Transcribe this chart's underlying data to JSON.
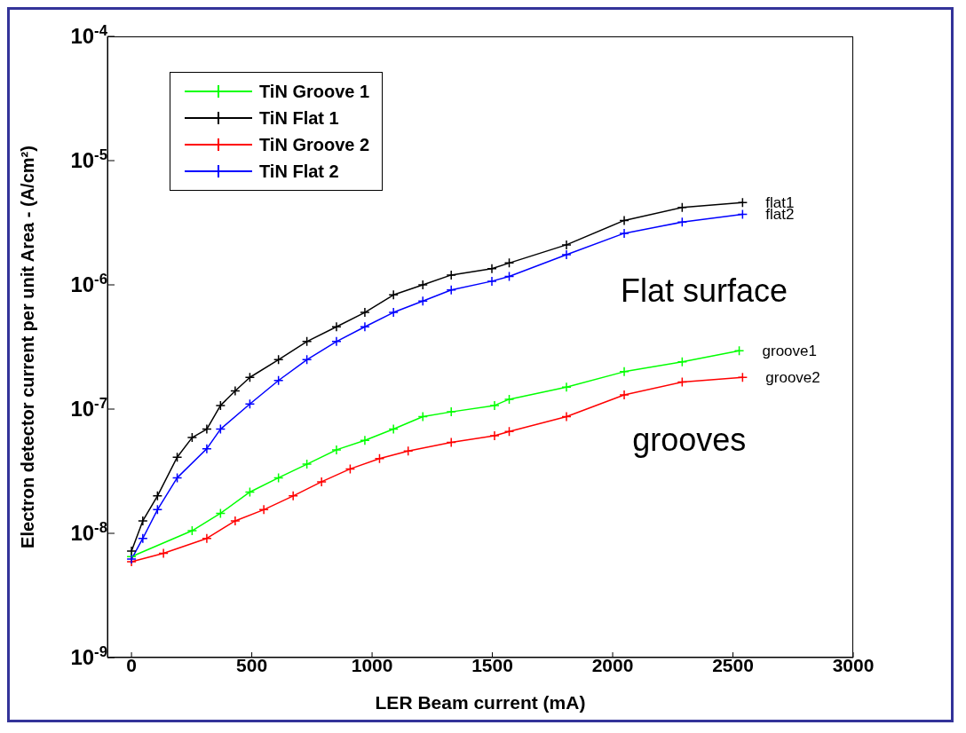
{
  "chart_data": {
    "type": "line",
    "xlabel": "LER Beam current (mA)",
    "ylabel": "Electron detector current per unit Area - (A/cm²)",
    "xlim": [
      -100,
      3000
    ],
    "xticks": [
      0,
      500,
      1000,
      1500,
      2000,
      2500,
      3000
    ],
    "ylim": [
      1e-09,
      0.0001
    ],
    "yticks": [
      {
        "value": 1e-09,
        "label": "10$^{-9}$"
      },
      {
        "value": 1e-08,
        "label": "10$^{-8}$"
      },
      {
        "value": 1e-07,
        "label": "10$^{-7}$"
      },
      {
        "value": 1e-06,
        "label": "10$^{-6}$"
      },
      {
        "value": 1e-05,
        "label": "10$^{-5}$"
      },
      {
        "value": 0.0001,
        "label": "10$^{-4}$"
      }
    ],
    "log": "y",
    "grid": false,
    "legend": "top left",
    "marker": "cross",
    "line_style": "solid",
    "series": [
      {
        "name": "TiN Groove 1",
        "color": "#00ff00",
        "x": [
          0,
          252,
          370,
          492,
          611,
          729,
          852,
          970,
          1089,
          1211,
          1329,
          1509,
          1570,
          1808,
          2048,
          2289,
          2526
        ],
        "values": [
          6.5e-09,
          1.05e-08,
          1.45e-08,
          2.15e-08,
          2.8e-08,
          3.6e-08,
          4.7e-08,
          5.6e-08,
          6.9e-08,
          8.7e-08,
          9.5e-08,
          1.07e-07,
          1.2e-07,
          1.5e-07,
          2e-07,
          2.4e-07,
          2.95e-07
        ]
      },
      {
        "name": "TiN Flat 1",
        "color": "#000000",
        "x": [
          0,
          47,
          108,
          190,
          252,
          313,
          370,
          431,
          492,
          611,
          729,
          852,
          970,
          1089,
          1211,
          1329,
          1498,
          1570,
          1808,
          2048,
          2289,
          2540
        ],
        "values": [
          7.2e-09,
          1.26e-08,
          2e-08,
          4.1e-08,
          5.9e-08,
          6.9e-08,
          1.07e-07,
          1.4e-07,
          1.8e-07,
          2.5e-07,
          3.5e-07,
          4.6e-07,
          6e-07,
          8.3e-07,
          1e-06,
          1.2e-06,
          1.35e-06,
          1.5e-06,
          2.1e-06,
          3.3e-06,
          4.2e-06,
          4.6e-06
        ]
      },
      {
        "name": "TiN Groove 2",
        "color": "#ff0000",
        "x": [
          0,
          133,
          313,
          431,
          550,
          672,
          790,
          909,
          1031,
          1150,
          1329,
          1509,
          1570,
          1808,
          2048,
          2289,
          2540
        ],
        "values": [
          5.9e-09,
          6.9e-09,
          9.1e-09,
          1.26e-08,
          1.55e-08,
          2e-08,
          2.6e-08,
          3.3e-08,
          4e-08,
          4.6e-08,
          5.4e-08,
          6.1e-08,
          6.6e-08,
          8.7e-08,
          1.3e-07,
          1.65e-07,
          1.8e-07
        ]
      },
      {
        "name": "TiN Flat 2",
        "color": "#0000ff",
        "x": [
          0,
          47,
          108,
          190,
          313,
          370,
          492,
          611,
          729,
          852,
          970,
          1089,
          1211,
          1329,
          1498,
          1570,
          1808,
          2048,
          2289,
          2540
        ],
        "values": [
          6.2e-09,
          9.1e-09,
          1.55e-08,
          2.8e-08,
          4.8e-08,
          6.9e-08,
          1.1e-07,
          1.7e-07,
          2.5e-07,
          3.5e-07,
          4.6e-07,
          6e-07,
          7.4e-07,
          9.1e-07,
          1.07e-06,
          1.17e-06,
          1.75e-06,
          2.6e-06,
          3.2e-06,
          3.7e-06
        ]
      }
    ],
    "annotations": [
      "flat1",
      "flat2",
      "groove1",
      "groove2",
      "Flat surface",
      "grooves"
    ]
  }
}
